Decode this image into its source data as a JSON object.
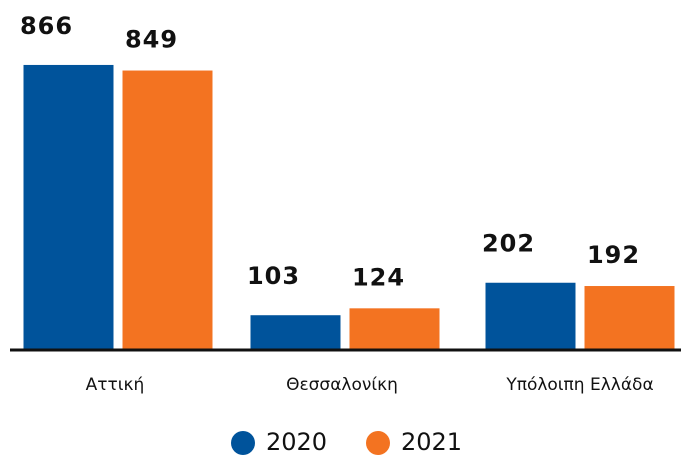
{
  "chart_data": {
    "type": "bar",
    "categories": [
      "Αττική",
      "Θεσσαλονίκη",
      "Υπόλοιπη Ελλάδα"
    ],
    "series": [
      {
        "name": "2020",
        "color": "#00539b",
        "values": [
          866,
          103,
          202
        ]
      },
      {
        "name": "2021",
        "color": "#f37321",
        "values": [
          849,
          124,
          192
        ]
      }
    ],
    "ylim": [
      0,
      1000
    ]
  }
}
